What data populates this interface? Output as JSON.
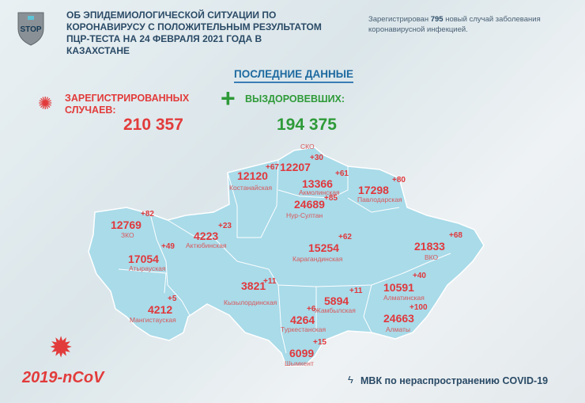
{
  "header": {
    "title_lines": [
      "ОБ ЭПИДЕМИОЛОГИЧЕСКОЙ СИТУАЦИИ ПО",
      "КОРОНАВИРУСУ С ПОЛОЖИТЕЛЬНЫМ РЕЗУЛЬТАТОМ",
      "ПЦР-ТЕСТА НА 24 ФЕВРАЛЯ 2021 ГОДА В КАЗАХСТАНЕ"
    ],
    "logo_text": "STOP"
  },
  "note": {
    "prefix": "Зарегистрирован ",
    "count": "795",
    "suffix": " новый случай заболевания коронавирусной инфекцией."
  },
  "latest_label": "ПОСЛЕДНИЕ ДАННЫЕ",
  "registered": {
    "label_lines": [
      "ЗАРЕГИСТРИРОВАННЫХ",
      "СЛУЧАЕВ:"
    ],
    "value": "210 357",
    "color": "#e23b3b"
  },
  "recovered": {
    "label": "ВЫЗДОРОВЕВШИХ:",
    "value": "194 375",
    "color": "#2e9a38"
  },
  "regions": [
    {
      "name": "СКО",
      "cases": "12207",
      "new": "+30"
    },
    {
      "name": "Костанайская",
      "cases": "12120",
      "new": "+67"
    },
    {
      "name": "Акмолинская",
      "cases": "13366",
      "new": "+61"
    },
    {
      "name": "Павлодарская",
      "cases": "17298",
      "new": "+80"
    },
    {
      "name": "Нур-Султан",
      "cases": "24689",
      "new": "+85"
    },
    {
      "name": "ЗКО",
      "cases": "12769",
      "new": "+82"
    },
    {
      "name": "Актюбинская",
      "cases": "4223",
      "new": "+23"
    },
    {
      "name": "Карагандинская",
      "cases": "15254",
      "new": "+62"
    },
    {
      "name": "ВКО",
      "cases": "21833",
      "new": "+68"
    },
    {
      "name": "Атырауская",
      "cases": "17054",
      "new": "+49"
    },
    {
      "name": "Кызылординская",
      "cases": "3821",
      "new": "+11"
    },
    {
      "name": "Мангистауская",
      "cases": "4212",
      "new": "+5"
    },
    {
      "name": "Жамбылская",
      "cases": "5894",
      "new": "+11"
    },
    {
      "name": "Туркестанская",
      "cases": "4264",
      "new": "+6"
    },
    {
      "name": "Алматинская",
      "cases": "10591",
      "new": "+40"
    },
    {
      "name": "Алматы",
      "cases": "24663",
      "new": "+100"
    },
    {
      "name": "Шымкент",
      "cases": "6099",
      "new": "+15"
    }
  ],
  "map_color": "#a9dbe9",
  "footer": {
    "ncov": "2019-nCoV",
    "mvk": "МВК по нераспространению COVID-19"
  }
}
